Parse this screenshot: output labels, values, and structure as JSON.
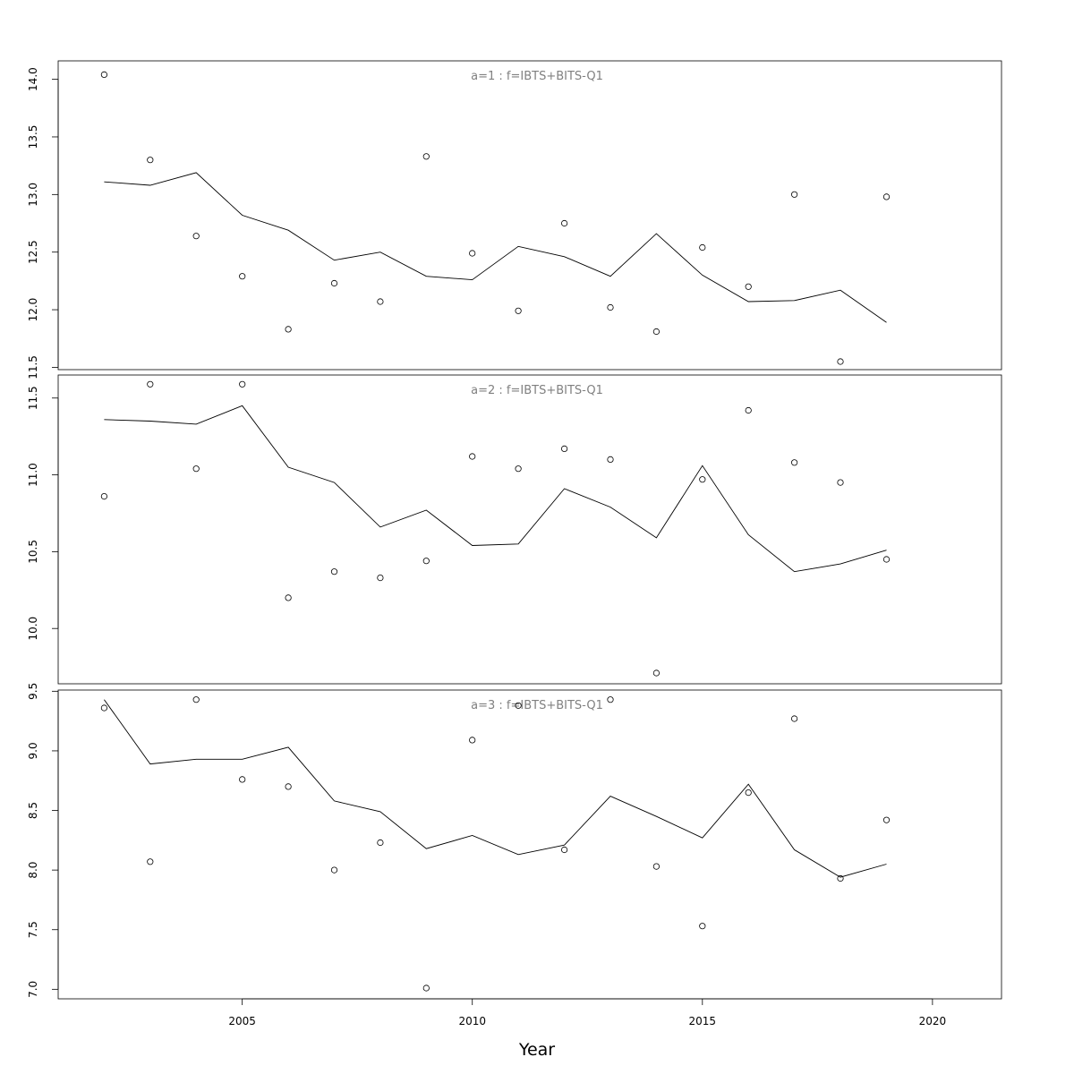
{
  "chart_data": {
    "type": "line",
    "xlabel": "Year",
    "xlim": [
      2001.0,
      2021.5
    ],
    "xticks": [
      2005,
      2010,
      2015,
      2020
    ],
    "panels": [
      {
        "title": "a=1 : f=IBTS+BITS-Q1",
        "ylim": [
          11.48,
          14.16
        ],
        "yticks": [
          "11.5",
          "12.0",
          "12.5",
          "13.0",
          "13.5",
          "14.0"
        ],
        "points": {
          "x": [
            2002,
            2003,
            2004,
            2005,
            2006,
            2007,
            2008,
            2009,
            2010,
            2011,
            2012,
            2013,
            2014,
            2015,
            2016,
            2017,
            2018,
            2019
          ],
          "y": [
            14.04,
            13.3,
            12.64,
            12.29,
            11.83,
            12.23,
            12.07,
            13.33,
            12.49,
            11.99,
            12.75,
            12.02,
            11.81,
            12.54,
            12.2,
            13.0,
            11.55,
            12.98
          ]
        },
        "fitted": {
          "x": [
            2002,
            2003,
            2004,
            2005,
            2006,
            2007,
            2008,
            2009,
            2010,
            2011,
            2012,
            2013,
            2014,
            2015,
            2016,
            2017,
            2018,
            2019
          ],
          "y": [
            13.11,
            13.08,
            13.19,
            12.82,
            12.69,
            12.43,
            12.5,
            12.29,
            12.26,
            12.55,
            12.46,
            12.29,
            12.66,
            12.3,
            12.07,
            12.08,
            12.17,
            11.89
          ]
        }
      },
      {
        "title": "a=2 : f=IBTS+BITS-Q1",
        "ylim": [
          9.64,
          11.65
        ],
        "yticks": [
          "10.0",
          "10.5",
          "11.0",
          "11.5"
        ],
        "points": {
          "x": [
            2002,
            2003,
            2004,
            2005,
            2006,
            2007,
            2008,
            2009,
            2010,
            2011,
            2012,
            2013,
            2014,
            2015,
            2016,
            2017,
            2018,
            2019
          ],
          "y": [
            10.86,
            11.59,
            11.04,
            11.59,
            10.2,
            10.37,
            10.33,
            10.44,
            11.12,
            11.04,
            11.17,
            11.1,
            9.71,
            10.97,
            11.42,
            11.08,
            10.95,
            10.45
          ]
        },
        "fitted": {
          "x": [
            2002,
            2003,
            2004,
            2005,
            2006,
            2007,
            2008,
            2009,
            2010,
            2011,
            2012,
            2013,
            2014,
            2015,
            2016,
            2017,
            2018,
            2019
          ],
          "y": [
            11.36,
            11.35,
            11.33,
            11.45,
            11.05,
            10.95,
            10.66,
            10.77,
            10.54,
            10.55,
            10.91,
            10.79,
            10.59,
            11.06,
            10.61,
            10.37,
            10.42,
            10.51
          ]
        }
      },
      {
        "title": "a=3 : f=IBTS+BITS-Q1",
        "ylim": [
          6.92,
          9.51
        ],
        "yticks": [
          "7.0",
          "7.5",
          "8.0",
          "8.5",
          "9.0",
          "9.5"
        ],
        "points": {
          "x": [
            2002,
            2003,
            2004,
            2005,
            2006,
            2007,
            2008,
            2009,
            2010,
            2011,
            2012,
            2013,
            2014,
            2015,
            2016,
            2017,
            2018,
            2019
          ],
          "y": [
            9.36,
            8.07,
            9.43,
            8.76,
            8.7,
            8.0,
            8.23,
            7.01,
            9.09,
            9.38,
            8.17,
            9.43,
            8.03,
            7.53,
            8.65,
            9.27,
            7.93,
            8.42
          ]
        },
        "fitted": {
          "x": [
            2002,
            2003,
            2004,
            2005,
            2006,
            2007,
            2008,
            2009,
            2010,
            2011,
            2012,
            2013,
            2014,
            2015,
            2016,
            2017,
            2018,
            2019
          ],
          "y": [
            9.43,
            8.89,
            8.93,
            8.93,
            9.03,
            8.58,
            8.49,
            8.18,
            8.29,
            8.13,
            8.21,
            8.62,
            8.45,
            8.27,
            8.72,
            8.17,
            7.94,
            8.05
          ]
        }
      }
    ]
  }
}
